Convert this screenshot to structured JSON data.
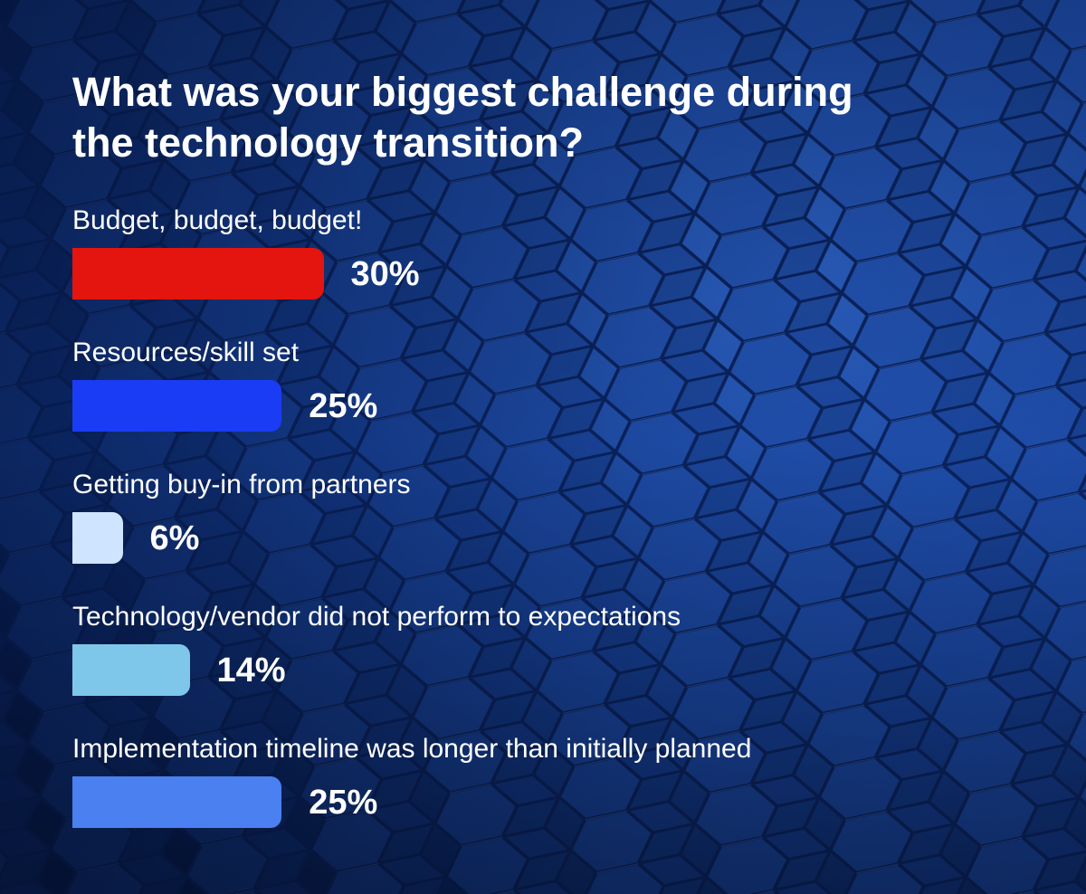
{
  "chart_data": {
    "type": "bar",
    "orientation": "horizontal",
    "title": "What was your biggest challenge during the technology transition?",
    "categories": [
      "Budget, budget, budget!",
      "Resources/skill set",
      "Getting buy-in from partners",
      "Technology/vendor did not perform to expectations",
      "Implementation timeline was longer than initially planned"
    ],
    "values": [
      30,
      25,
      6,
      14,
      25
    ],
    "value_labels": [
      "30%",
      "25%",
      "6%",
      "14%",
      "25%"
    ],
    "colors": [
      "#e4150e",
      "#1a3cf5",
      "#cfe4ff",
      "#7ec7ea",
      "#4a80f0"
    ],
    "xlim": [
      0,
      100
    ],
    "xlabel": "",
    "ylabel": "",
    "grid": false,
    "legend": "none"
  },
  "background": {
    "base_color": "#0b2a6b",
    "pattern": "hexagon-tiles"
  }
}
